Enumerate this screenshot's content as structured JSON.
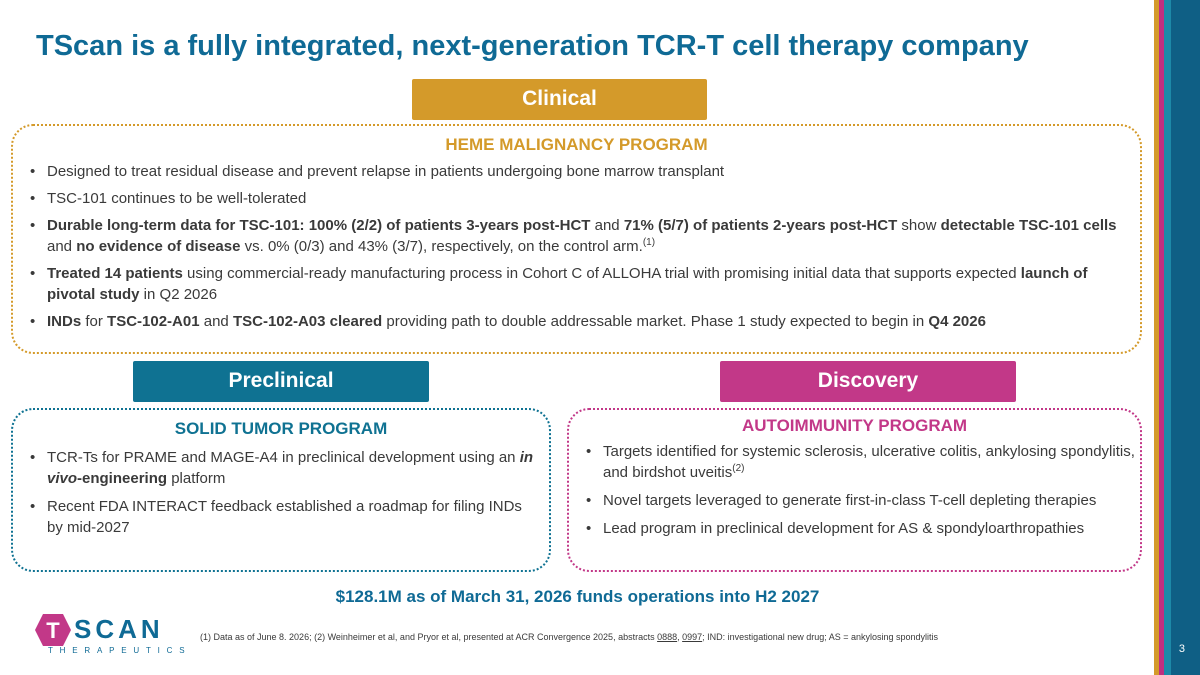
{
  "title": "TScan is a fully integrated, next-generation TCR-T cell therapy company",
  "page_number": "3",
  "colors": {
    "gold": "#d49a2a",
    "teal": "#0f7292",
    "magenta": "#c23888",
    "navy": "#0f6a95"
  },
  "clinical": {
    "label": "Clinical",
    "heading": "HEME MALIGNANCY PROGRAM",
    "b1": "Designed to treat residual disease and prevent relapse in patients undergoing bone marrow transplant",
    "b2": "TSC-101 continues to be well-tolerated",
    "b3": {
      "p1": "Durable long-term data for TSC-101: 100% (2/2) of patients 3-years post-HCT",
      "p2": " and ",
      "p3": "71% (5/7) of patients 2-years post-HCT",
      "p4": " show ",
      "p5": "detectable TSC-101 cells",
      "p6": " and ",
      "p7": "no evidence of disease",
      "p8": " vs. 0% (0/3) and 43% (3/7), respectively, on the control arm.",
      "sup": "(1)"
    },
    "b4": {
      "p1": "Treated 14 patients",
      "p2": " using commercial-ready manufacturing process in Cohort C of ALLOHA trial with promising initial data that supports expected ",
      "p3": "launch of pivotal study",
      "p4": " in Q2 2026"
    },
    "b5": {
      "p1": "INDs",
      "p2": " for ",
      "p3": "TSC-102-A01",
      "p4": " and ",
      "p5": "TSC-102-A03 cleared",
      "p6": " providing path to double addressable market. Phase 1 study expected to begin in ",
      "p7": "Q4 2026"
    }
  },
  "preclinical": {
    "label": "Preclinical",
    "heading": "SOLID TUMOR PROGRAM",
    "b1": {
      "p1": "TCR-Ts for PRAME and MAGE-A4 in preclinical development using an ",
      "p2": "in vivo",
      "p3": "-engineering",
      "p4": " platform"
    },
    "b2": "Recent FDA INTERACT feedback established a roadmap for filing INDs by mid-2027"
  },
  "discovery": {
    "label": "Discovery",
    "heading": "AUTOIMMUNITY PROGRAM",
    "b1": "Targets identified for systemic sclerosis, ulcerative colitis, ankylosing spondylitis, and birdshot uveitis",
    "b1_sup": "(2)",
    "b2": "Novel targets leveraged to generate first-in-class T-cell depleting therapies",
    "b3": "Lead program in preclinical development for AS & spondyloarthropathies"
  },
  "funds": "$128.1M as of March 31, 2026 funds operations into H2 2027",
  "logo": {
    "word": "SCAN",
    "letter": "T",
    "sub": "THERAPEUTICS"
  },
  "footnote": {
    "p1": "(1) Data as of June 8. 2026; (2) Weinheimer et al, and Pryor et al, presented at ACR Convergence 2025, abstracts ",
    "link1": "0888",
    "p2": ", ",
    "link2": "0997",
    "p3": "; IND: investigational new drug; AS = ankylosing spondylitis"
  }
}
